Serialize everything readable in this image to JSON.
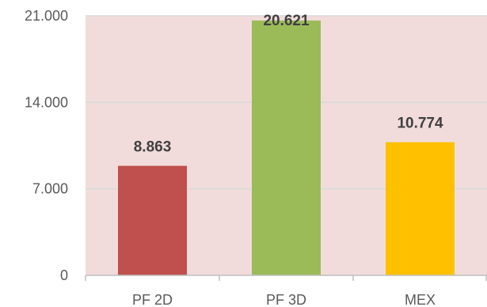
{
  "chart_data": {
    "type": "bar",
    "categories": [
      "PF 2D",
      "PF 3D",
      "MEX"
    ],
    "values": [
      8863,
      20621,
      10774
    ],
    "data_labels": [
      "8.863",
      "20.621",
      "10.774"
    ],
    "bar_colors": [
      "#c0504d",
      "#9bbb59",
      "#ffc000"
    ],
    "plot_background": "#f2dcdb",
    "gridline_color": "#d9d9d9",
    "yticks": [
      0,
      7000,
      14000,
      21000
    ],
    "ytick_labels": [
      "0",
      "7.000",
      "14.000",
      "21.000"
    ],
    "ylim": [
      0,
      21000
    ],
    "grid": true,
    "legend": "none"
  }
}
